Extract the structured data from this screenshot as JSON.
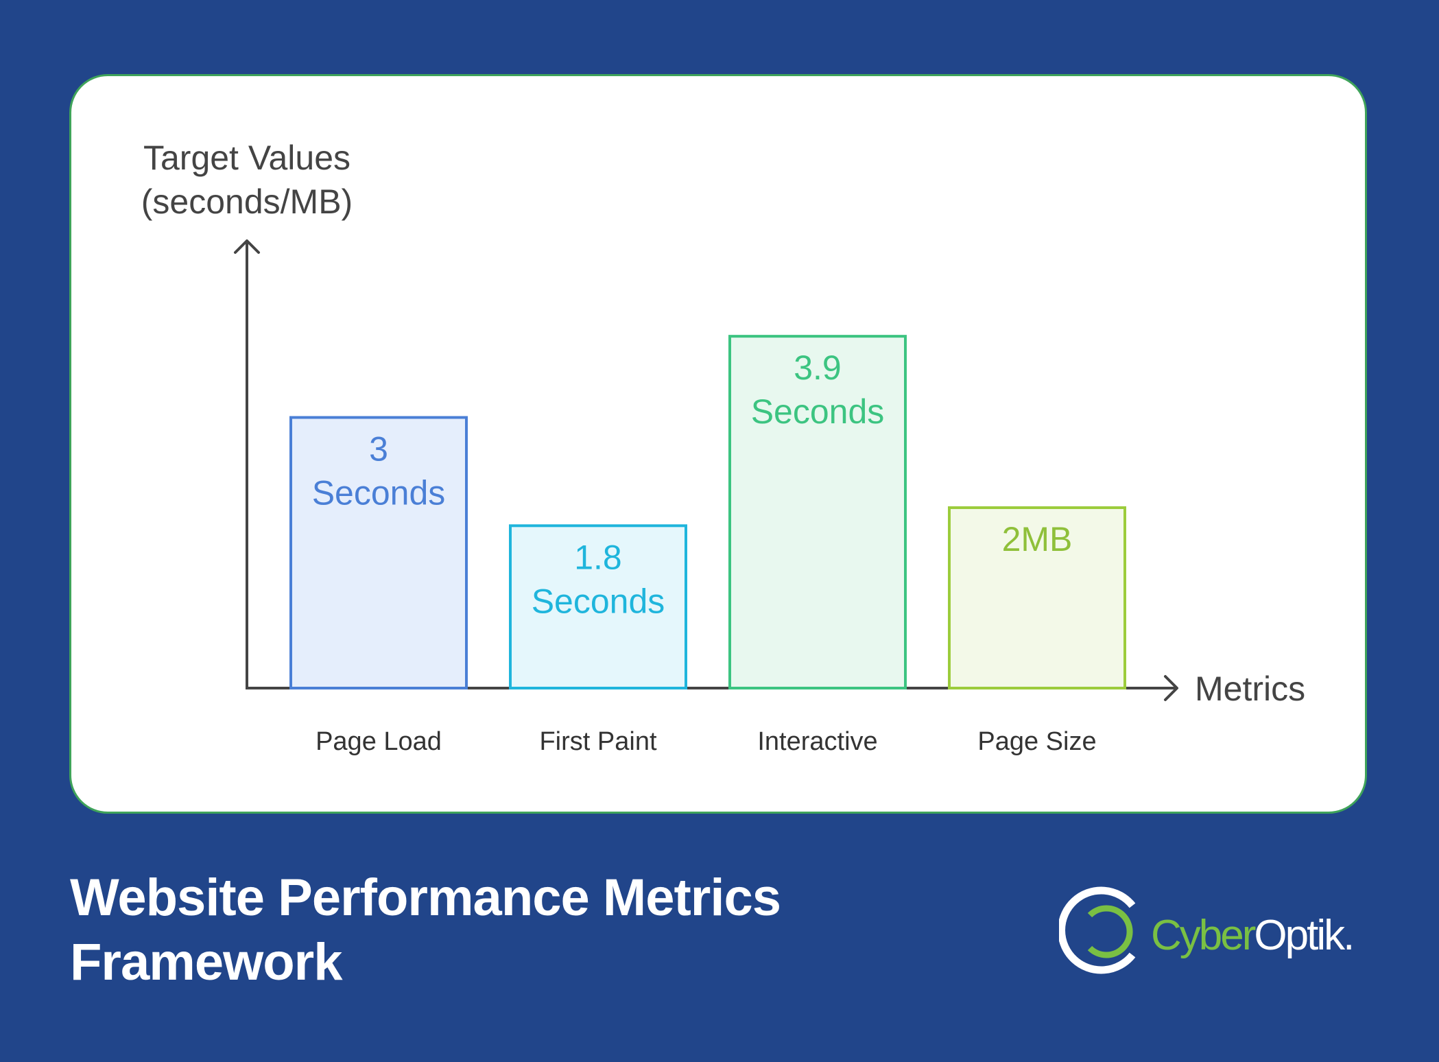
{
  "chart_data": {
    "type": "bar",
    "ylabel": [
      "Target Values",
      "(seconds/MB)"
    ],
    "xlabel": "Metrics",
    "categories": [
      "Page Load",
      "First Paint",
      "Interactive",
      "Page Size"
    ],
    "values": [
      3,
      1.8,
      3.9,
      2
    ],
    "units": [
      "seconds",
      "seconds",
      "seconds",
      "MB"
    ],
    "data_labels": [
      [
        "3",
        "Seconds"
      ],
      [
        "1.8",
        "Seconds"
      ],
      [
        "3.9",
        "Seconds"
      ],
      [
        "2MB"
      ]
    ],
    "bar_colors": [
      {
        "stroke": "#4a7fd6",
        "fill": "#e5eefc",
        "text": "#4a7fd6"
      },
      {
        "stroke": "#1fb5dc",
        "fill": "#e5f7fc",
        "text": "#1fb5dc"
      },
      {
        "stroke": "#3cc481",
        "fill": "#e8f8ef",
        "text": "#3cc481"
      },
      {
        "stroke": "#9ccc3c",
        "fill": "#f3f9e8",
        "text": "#8fc03a"
      }
    ],
    "axis_color": "#444444",
    "grid": false
  },
  "footer": {
    "title_line1": "Website Performance Metrics",
    "title_line2": "Framework"
  },
  "brand": {
    "name_part1": "Cyber",
    "name_part2": "Optik.",
    "green": "#7ac043",
    "white": "#ffffff"
  }
}
